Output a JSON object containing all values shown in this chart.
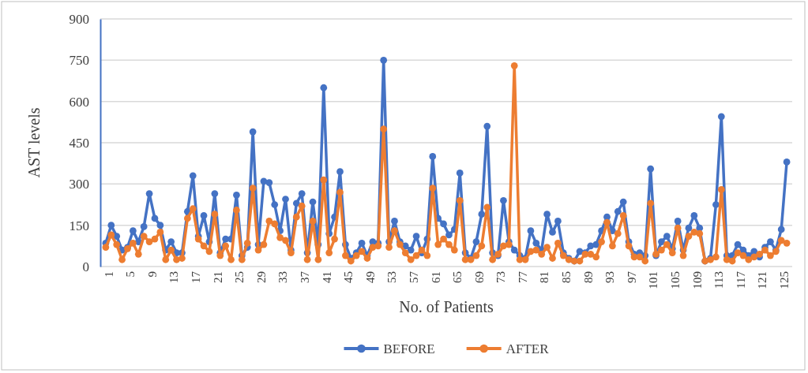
{
  "chart_data": {
    "type": "line",
    "xlabel": "No. of Patients",
    "ylabel": "AST levels",
    "x": [
      1,
      2,
      3,
      4,
      5,
      6,
      7,
      8,
      9,
      10,
      11,
      12,
      13,
      14,
      15,
      16,
      17,
      18,
      19,
      20,
      21,
      22,
      23,
      24,
      25,
      26,
      27,
      28,
      29,
      30,
      31,
      32,
      33,
      34,
      35,
      36,
      37,
      38,
      39,
      40,
      41,
      42,
      43,
      44,
      45,
      46,
      47,
      48,
      49,
      50,
      51,
      52,
      53,
      54,
      55,
      56,
      57,
      58,
      59,
      60,
      61,
      62,
      63,
      64,
      65,
      66,
      67,
      68,
      69,
      70,
      71,
      72,
      73,
      74,
      75,
      76,
      77,
      78,
      79,
      80,
      81,
      82,
      83,
      84,
      85,
      86,
      87,
      88,
      89,
      90,
      91,
      92,
      93,
      94,
      95,
      96,
      97,
      98,
      99,
      100,
      101,
      102,
      103,
      104,
      105,
      106,
      107,
      108,
      109,
      110,
      111,
      112,
      113,
      114,
      115,
      116,
      117,
      118,
      119,
      120,
      121,
      122,
      123,
      124,
      125,
      126
    ],
    "xlim": [
      0,
      127
    ],
    "xticks": [
      1,
      5,
      9,
      13,
      17,
      21,
      25,
      29,
      33,
      37,
      41,
      45,
      49,
      53,
      57,
      61,
      65,
      69,
      73,
      77,
      81,
      85,
      89,
      93,
      97,
      101,
      105,
      109,
      113,
      117,
      121,
      125
    ],
    "series": [
      {
        "name": "BEFORE",
        "color": "#4472c4",
        "values": [
          85,
          150,
          110,
          60,
          70,
          130,
          90,
          145,
          265,
          175,
          150,
          60,
          90,
          50,
          50,
          200,
          330,
          110,
          185,
          90,
          265,
          50,
          100,
          100,
          260,
          40,
          70,
          490,
          80,
          310,
          305,
          225,
          130,
          245,
          60,
          230,
          265,
          50,
          235,
          80,
          650,
          120,
          180,
          345,
          80,
          30,
          50,
          85,
          40,
          90,
          85,
          750,
          90,
          165,
          90,
          75,
          60,
          110,
          50,
          100,
          400,
          175,
          155,
          115,
          135,
          340,
          50,
          30,
          90,
          190,
          510,
          50,
          40,
          240,
          90,
          60,
          40,
          30,
          130,
          85,
          60,
          190,
          125,
          165,
          50,
          30,
          20,
          55,
          50,
          75,
          80,
          130,
          180,
          130,
          200,
          235,
          90,
          45,
          50,
          40,
          355,
          40,
          90,
          110,
          65,
          165,
          60,
          140,
          185,
          140,
          20,
          30,
          225,
          545,
          40,
          40,
          80,
          60,
          40,
          55,
          35,
          70,
          90,
          60,
          135,
          380
        ]
      },
      {
        "name": "AFTER",
        "color": "#ed7d31",
        "values": [
          70,
          115,
          80,
          25,
          65,
          85,
          45,
          110,
          90,
          100,
          125,
          25,
          60,
          25,
          30,
          175,
          210,
          100,
          75,
          55,
          190,
          40,
          75,
          25,
          205,
          25,
          85,
          285,
          60,
          80,
          165,
          155,
          105,
          95,
          50,
          180,
          220,
          25,
          165,
          25,
          315,
          50,
          100,
          270,
          40,
          20,
          40,
          55,
          30,
          70,
          75,
          500,
          70,
          130,
          80,
          50,
          25,
          40,
          60,
          40,
          285,
          80,
          100,
          80,
          60,
          240,
          25,
          25,
          40,
          75,
          215,
          25,
          45,
          75,
          80,
          730,
          25,
          25,
          55,
          60,
          45,
          70,
          30,
          85,
          40,
          25,
          20,
          20,
          45,
          45,
          35,
          90,
          160,
          75,
          120,
          185,
          75,
          35,
          35,
          20,
          230,
          45,
          60,
          80,
          50,
          140,
          40,
          110,
          125,
          120,
          20,
          25,
          35,
          280,
          25,
          20,
          50,
          40,
          25,
          35,
          45,
          60,
          40,
          55,
          95,
          85
        ]
      }
    ],
    "ylim": [
      0,
      900
    ],
    "yticks": [
      0,
      150,
      300,
      450,
      600,
      750,
      900
    ],
    "grid": "y",
    "legend": "bottom",
    "marker": "circle",
    "line_style": "solid"
  }
}
